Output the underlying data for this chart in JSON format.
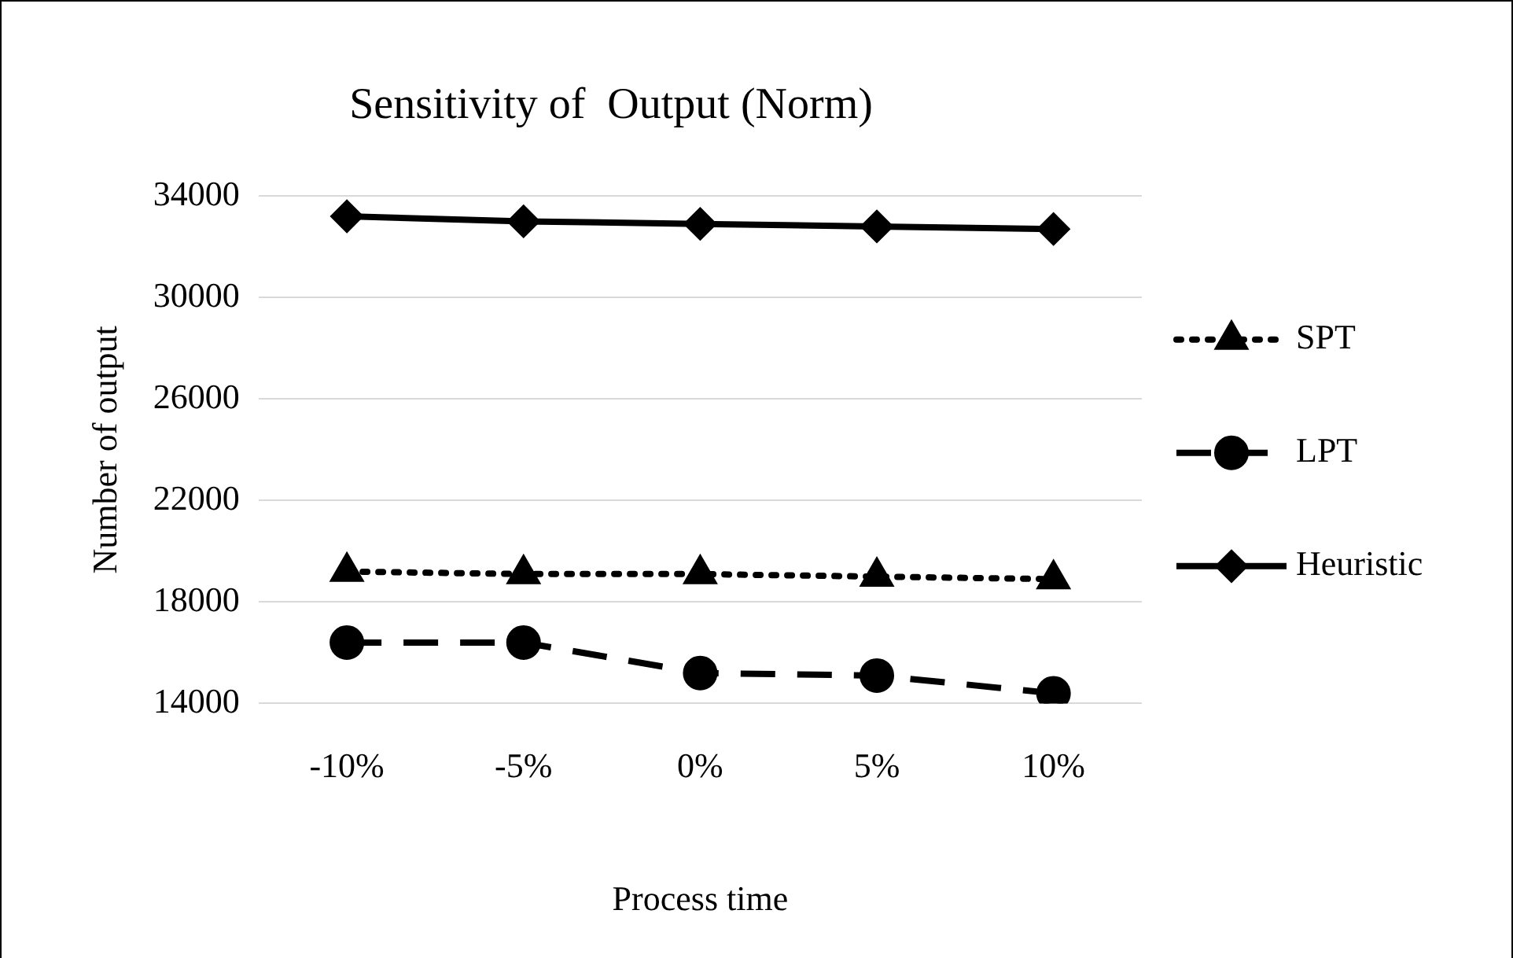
{
  "chart_data": {
    "type": "line",
    "title": "Sensitivity of  Output (Norm)",
    "xlabel": "Process time",
    "ylabel": "Number of output",
    "categories": [
      "-10%",
      "-5%",
      "0%",
      "5%",
      "10%"
    ],
    "series": [
      {
        "name": "SPT",
        "color": "#000000",
        "marker": "triangle",
        "line_style": "dotted",
        "values": [
          19200,
          19100,
          19100,
          19000,
          18900
        ]
      },
      {
        "name": "LPT",
        "color": "#000000",
        "marker": "circle",
        "line_style": "dashed",
        "values": [
          16400,
          16400,
          15200,
          15100,
          14400
        ]
      },
      {
        "name": "Heuristic",
        "color": "#000000",
        "marker": "diamond",
        "line_style": "solid",
        "values": [
          33200,
          33000,
          32900,
          32800,
          32700
        ]
      }
    ],
    "ylim": [
      14000,
      34000
    ],
    "yticks": [
      14000,
      18000,
      22000,
      26000,
      30000,
      34000
    ],
    "grid": "y",
    "legend": "right"
  }
}
